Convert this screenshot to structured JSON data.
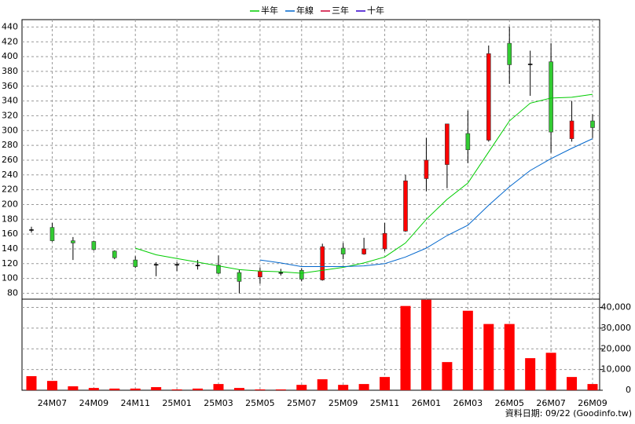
{
  "chart_data": {
    "type": "candlestick",
    "categories": [
      null,
      "24M07",
      null,
      "24M09",
      null,
      "24M11",
      null,
      "25M01",
      null,
      "25M03",
      null,
      "25M05",
      null,
      "25M07",
      null,
      "25M09",
      null,
      "25M11",
      null,
      "26M01",
      null,
      "26M03",
      null,
      "26M05",
      null,
      "26M07",
      null,
      "26M09"
    ],
    "open": [
      166,
      169,
      151,
      150,
      137,
      125,
      119,
      119,
      118,
      118,
      108,
      102,
      108,
      111,
      98,
      141,
      133,
      140,
      164,
      235,
      254,
      296,
      287,
      418,
      390,
      393,
      289,
      313
    ],
    "high": [
      170,
      175,
      156,
      151,
      138,
      130,
      122,
      122,
      125,
      131,
      112,
      115,
      113,
      114,
      147,
      148,
      155,
      175,
      240,
      290,
      309,
      327,
      415,
      440,
      408,
      418,
      340,
      322
    ],
    "low": [
      162,
      150,
      125,
      138,
      126,
      114,
      103,
      110,
      112,
      106,
      80,
      93,
      104,
      96,
      97,
      126,
      132,
      137,
      163,
      218,
      222,
      256,
      285,
      363,
      347,
      270,
      285,
      290
    ],
    "close": [
      166,
      151,
      148,
      139,
      128,
      116,
      119,
      119,
      118,
      107,
      96,
      110,
      108,
      99,
      143,
      133,
      140,
      161,
      232,
      260,
      309,
      274,
      404,
      389,
      390,
      298,
      313,
      304
    ],
    "up_color": "#ff0000",
    "down_color": "#33cc33",
    "flat_color": "#000000",
    "series": [
      {
        "name": "半年",
        "color": "#00cc00",
        "values": [
          null,
          null,
          null,
          null,
          null,
          141,
          132,
          127,
          122,
          117,
          112,
          110,
          109,
          107,
          111,
          115,
          121,
          129,
          148,
          180,
          207,
          229,
          271,
          313,
          337,
          344,
          345,
          349
        ]
      },
      {
        "name": "年線",
        "color": "#0066cc",
        "values": [
          null,
          null,
          null,
          null,
          null,
          null,
          null,
          null,
          null,
          null,
          null,
          125,
          121,
          116,
          116,
          116,
          117,
          120,
          129,
          141,
          158,
          172,
          199,
          224,
          246,
          262,
          276,
          289
        ]
      },
      {
        "name": "三年",
        "color": "#cc0033",
        "values": [
          null,
          null,
          null,
          null,
          null,
          null,
          null,
          null,
          null,
          null,
          null,
          null,
          null,
          null,
          null,
          null,
          null,
          null,
          null,
          null,
          null,
          null,
          null,
          null,
          null,
          null,
          null,
          null
        ]
      },
      {
        "name": "十年",
        "color": "#3300cc",
        "values": [
          null,
          null,
          null,
          null,
          null,
          null,
          null,
          null,
          null,
          null,
          null,
          null,
          null,
          null,
          null,
          null,
          null,
          null,
          null,
          null,
          null,
          null,
          null,
          null,
          null,
          null,
          null,
          null
        ]
      }
    ],
    "ylim": [
      72,
      450
    ],
    "yticks": [
      80,
      100,
      120,
      140,
      160,
      180,
      200,
      220,
      240,
      260,
      280,
      300,
      320,
      340,
      360,
      380,
      400,
      420,
      440
    ],
    "volume": {
      "color": "#ff0000",
      "values": [
        6800,
        4500,
        1900,
        1100,
        800,
        800,
        1500,
        400,
        800,
        3000,
        1100,
        400,
        400,
        2600,
        5300,
        2600,
        3000,
        6400,
        40700,
        43700,
        13600,
        38400,
        32000,
        32000,
        15500,
        18100,
        6400,
        3000
      ],
      "ylim": [
        0,
        44000
      ],
      "yticks": [
        0,
        {
          "value": 10000,
          "label": "10,000"
        },
        {
          "value": 20000,
          "label": "20,000"
        },
        {
          "value": 30000,
          "label": "30,000"
        },
        {
          "value": 40000,
          "label": "40,000"
        }
      ]
    },
    "grid": true,
    "note": "資料日期: 09/22 (Goodinfo.tw)"
  }
}
